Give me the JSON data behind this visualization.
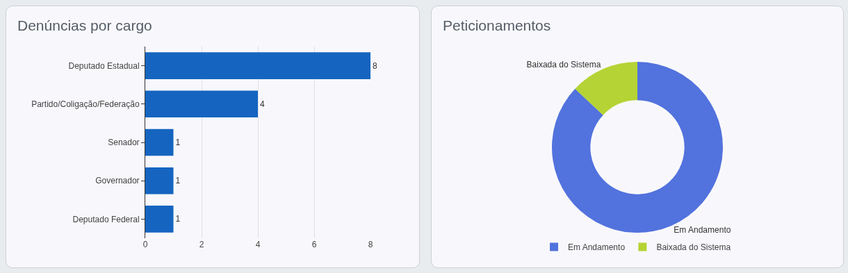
{
  "chart_data": [
    {
      "type": "bar",
      "title": "Denúncias por cargo",
      "orientation": "horizontal",
      "categories": [
        "Deputado Estadual",
        "Partido/Coligação/Federação",
        "Senador",
        "Governador",
        "Deputado Federal"
      ],
      "values": [
        8,
        4,
        1,
        1,
        1
      ],
      "color": "#1565c0",
      "xlim": [
        0,
        8
      ],
      "xticks": [
        0,
        2,
        4,
        6,
        8
      ],
      "grid": "x",
      "data_labels": true
    },
    {
      "type": "donut",
      "title": "Peticionamentos",
      "categories": [
        "Em Andamento",
        "Baixada do Sistema"
      ],
      "values": [
        87,
        13
      ],
      "colors": [
        "#5272dd",
        "#b5d334"
      ],
      "legend": "bottom"
    }
  ]
}
